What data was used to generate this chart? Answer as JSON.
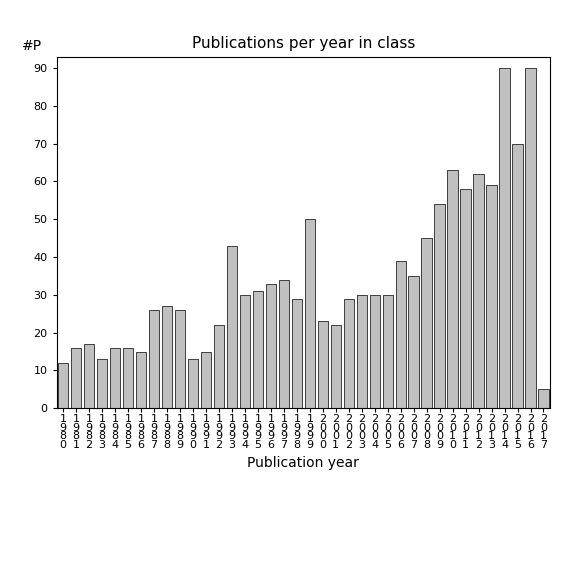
{
  "title": "Publications per year in class",
  "xlabel": "Publication year",
  "ylabel": "#P",
  "years": [
    "1980",
    "1981",
    "1982",
    "1983",
    "1984",
    "1985",
    "1986",
    "1987",
    "1988",
    "1989",
    "1990",
    "1991",
    "1992",
    "1993",
    "1994",
    "1995",
    "1996",
    "1997",
    "1998",
    "1999",
    "2000",
    "2001",
    "2002",
    "2003",
    "2004",
    "2005",
    "2006",
    "2007",
    "2008",
    "2009",
    "2010",
    "2011",
    "2012",
    "2013",
    "2014",
    "2015",
    "2016",
    "2017"
  ],
  "values": [
    12,
    16,
    17,
    13,
    16,
    16,
    15,
    26,
    27,
    26,
    13,
    15,
    22,
    43,
    30,
    31,
    33,
    34,
    29,
    50,
    23,
    22,
    29,
    30,
    30,
    30,
    39,
    35,
    45,
    54,
    63,
    58,
    62,
    59,
    90,
    70,
    90,
    5
  ],
  "bar_color": "#c0c0c0",
  "bar_edge_color": "#000000",
  "bar_edge_width": 0.5,
  "ylim": [
    0,
    93
  ],
  "yticks": [
    0,
    10,
    20,
    30,
    40,
    50,
    60,
    70,
    80,
    90
  ],
  "bg_color": "#ffffff",
  "title_fontsize": 11,
  "axis_label_fontsize": 10,
  "tick_fontsize": 8
}
